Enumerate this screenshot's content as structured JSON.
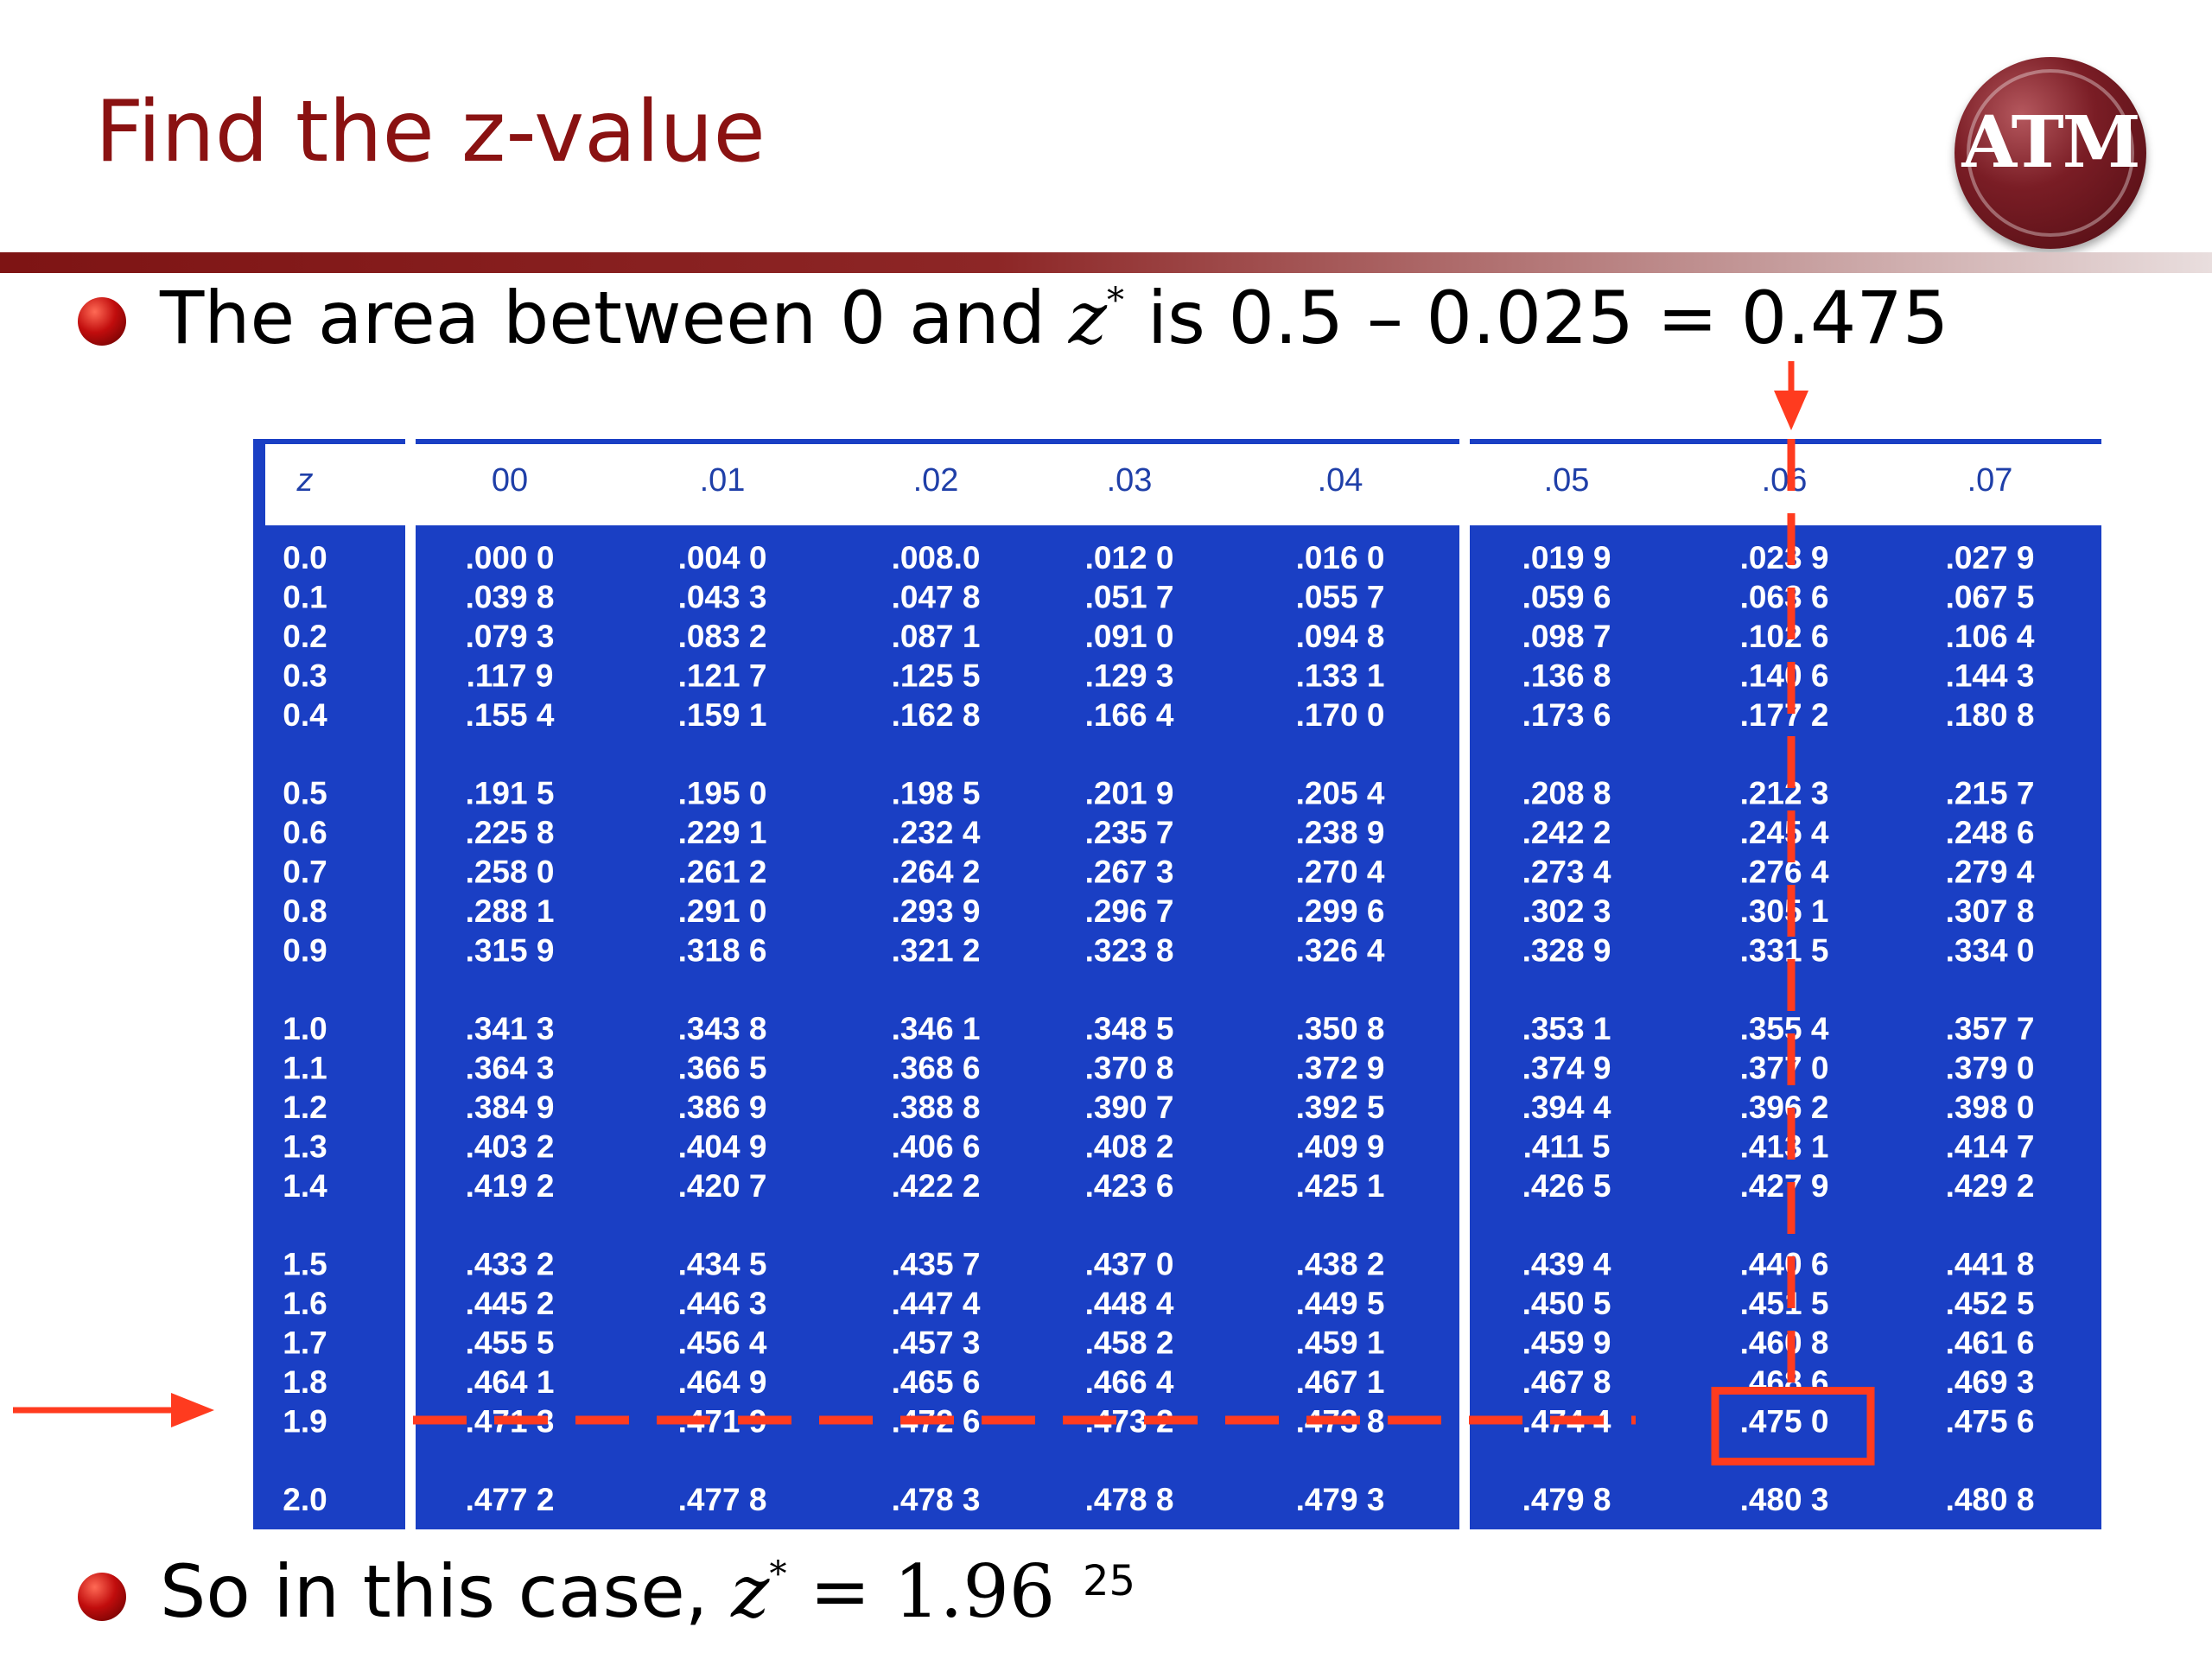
{
  "title": "Find the z-value",
  "logo": {
    "text": "ATM"
  },
  "bullets": {
    "b1": {
      "prefix": "The area between 0 and ",
      "var": "z",
      "star": "*",
      "suffix": " is 0.5 – 0.025 = 0.475"
    },
    "b2": {
      "prefix": "So in this case, ",
      "var": "z",
      "star": "*",
      "eq": " = 1.96"
    }
  },
  "page_number": "25",
  "colors": {
    "title": "#8a1212",
    "table_bg": "#1a3fc4",
    "header_bg": "#ffffff",
    "highlight": "#ff3b1f"
  },
  "table": {
    "header": [
      "z",
      "00",
      ".01",
      ".02",
      ".03",
      ".04",
      ".05",
      ".06",
      ".07"
    ],
    "groups": [
      [
        [
          "0.0",
          ".000 0",
          ".004 0",
          ".008.0",
          ".012 0",
          ".016 0",
          ".019 9",
          ".023 9",
          ".027 9"
        ],
        [
          "0.1",
          ".039 8",
          ".043 3",
          ".047 8",
          ".051 7",
          ".055 7",
          ".059 6",
          ".063 6",
          ".067 5"
        ],
        [
          "0.2",
          ".079 3",
          ".083 2",
          ".087 1",
          ".091 0",
          ".094 8",
          ".098 7",
          ".102 6",
          ".106 4"
        ],
        [
          "0.3",
          ".117 9",
          ".121 7",
          ".125 5",
          ".129 3",
          ".133 1",
          ".136 8",
          ".140 6",
          ".144 3"
        ],
        [
          "0.4",
          ".155 4",
          ".159 1",
          ".162 8",
          ".166 4",
          ".170 0",
          ".173 6",
          ".177 2",
          ".180 8"
        ]
      ],
      [
        [
          "0.5",
          ".191 5",
          ".195 0",
          ".198 5",
          ".201 9",
          ".205 4",
          ".208 8",
          ".212 3",
          ".215 7"
        ],
        [
          "0.6",
          ".225 8",
          ".229 1",
          ".232 4",
          ".235 7",
          ".238 9",
          ".242 2",
          ".245 4",
          ".248 6"
        ],
        [
          "0.7",
          ".258 0",
          ".261 2",
          ".264 2",
          ".267 3",
          ".270 4",
          ".273 4",
          ".276 4",
          ".279 4"
        ],
        [
          "0.8",
          ".288 1",
          ".291 0",
          ".293 9",
          ".296 7",
          ".299 6",
          ".302 3",
          ".305 1",
          ".307 8"
        ],
        [
          "0.9",
          ".315 9",
          ".318 6",
          ".321 2",
          ".323 8",
          ".326 4",
          ".328 9",
          ".331 5",
          ".334 0"
        ]
      ],
      [
        [
          "1.0",
          ".341 3",
          ".343 8",
          ".346 1",
          ".348 5",
          ".350 8",
          ".353 1",
          ".355 4",
          ".357 7"
        ],
        [
          "1.1",
          ".364 3",
          ".366 5",
          ".368 6",
          ".370 8",
          ".372 9",
          ".374 9",
          ".377 0",
          ".379 0"
        ],
        [
          "1.2",
          ".384 9",
          ".386 9",
          ".388 8",
          ".390 7",
          ".392 5",
          ".394 4",
          ".396 2",
          ".398 0"
        ],
        [
          "1.3",
          ".403 2",
          ".404 9",
          ".406 6",
          ".408 2",
          ".409 9",
          ".411 5",
          ".413 1",
          ".414 7"
        ],
        [
          "1.4",
          ".419 2",
          ".420 7",
          ".422 2",
          ".423 6",
          ".425 1",
          ".426 5",
          ".427 9",
          ".429 2"
        ]
      ],
      [
        [
          "1.5",
          ".433 2",
          ".434 5",
          ".435 7",
          ".437 0",
          ".438 2",
          ".439 4",
          ".440 6",
          ".441 8"
        ],
        [
          "1.6",
          ".445 2",
          ".446 3",
          ".447 4",
          ".448 4",
          ".449 5",
          ".450 5",
          ".451 5",
          ".452 5"
        ],
        [
          "1.7",
          ".455 5",
          ".456 4",
          ".457 3",
          ".458 2",
          ".459 1",
          ".459 9",
          ".460 8",
          ".461 6"
        ],
        [
          "1.8",
          ".464 1",
          ".464 9",
          ".465 6",
          ".466 4",
          ".467 1",
          ".467 8",
          ".468 6",
          ".469 3"
        ],
        [
          "1.9",
          ".471 3",
          ".471 9",
          ".472 6",
          ".473 2",
          ".473 8",
          ".474 4",
          ".475 0",
          ".475 6"
        ]
      ],
      [
        [
          "2.0",
          ".477 2",
          ".477 8",
          ".478 3",
          ".478 8",
          ".479 3",
          ".479 8",
          ".480 3",
          ".480 8"
        ]
      ]
    ],
    "highlight": {
      "row": "1.9",
      "col": ".06",
      "value": ".475 0"
    }
  }
}
